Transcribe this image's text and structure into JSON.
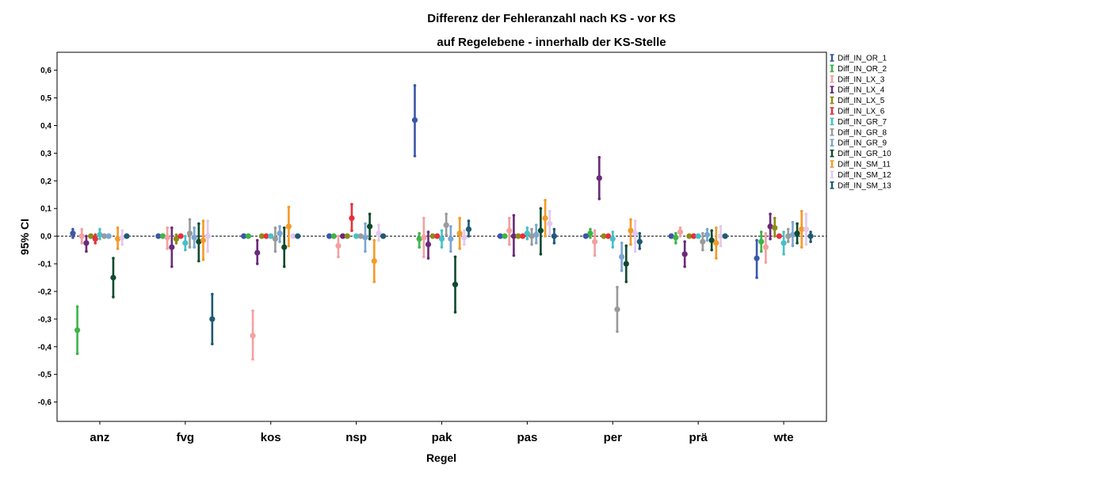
{
  "chart_data": {
    "type": "errorbar",
    "title": "Differenz der Fehleranzahl nach KS - vor KS",
    "subtitle": "auf Regelebene - innerhalb der KS-Stelle",
    "xlabel": "Regel",
    "ylabel": "95% CI",
    "ylim": [
      -0.67,
      0.665
    ],
    "yticks": [
      -0.6,
      -0.5,
      -0.4,
      -0.3,
      -0.2,
      -0.1,
      0.0,
      0.1,
      0.2,
      0.3,
      0.4,
      0.5,
      0.6
    ],
    "ytick_labels": [
      "-0,6",
      "-0,5",
      "-0,4",
      "-0,3",
      "-0,2",
      "-0,1",
      "0,0",
      "0,1",
      "0,2",
      "0,3",
      "0,4",
      "0,5",
      "0,6"
    ],
    "reference_line": 0.0,
    "legend_position": "right",
    "categories": [
      "anz",
      "fvg",
      "kos",
      "nsp",
      "pak",
      "pas",
      "per",
      "prä",
      "wte"
    ],
    "series": [
      {
        "name": "Diff_IN_OR_1",
        "color": "#3a57a8",
        "mean": [
          0.01,
          0.0,
          0.0,
          0.0,
          0.42,
          0.0,
          0.0,
          0.0,
          -0.08
        ],
        "lower": [
          -0.005,
          0.0,
          0.0,
          0.0,
          0.29,
          0.0,
          0.0,
          0.0,
          -0.15
        ],
        "upper": [
          0.025,
          0.0,
          0.0,
          0.0,
          0.545,
          0.0,
          0.0,
          0.0,
          -0.015
        ]
      },
      {
        "name": "Diff_IN_OR_2",
        "color": "#3cb54a",
        "mean": [
          -0.34,
          0.0,
          0.0,
          0.0,
          -0.01,
          0.0,
          0.01,
          -0.005,
          -0.02
        ],
        "lower": [
          -0.425,
          0.0,
          0.0,
          0.0,
          -0.04,
          0.0,
          -0.005,
          -0.025,
          -0.055
        ],
        "upper": [
          -0.255,
          0.0,
          0.0,
          0.0,
          0.01,
          0.0,
          0.025,
          0.01,
          0.015
        ]
      },
      {
        "name": "Diff_IN_LX_3",
        "color": "#f4a0a0",
        "mean": [
          0.0,
          -0.005,
          -0.36,
          -0.035,
          -0.005,
          0.02,
          -0.02,
          0.015,
          -0.04
        ],
        "lower": [
          -0.025,
          -0.045,
          -0.445,
          -0.075,
          -0.075,
          -0.03,
          -0.07,
          0.0,
          -0.095
        ],
        "upper": [
          0.025,
          0.03,
          -0.27,
          0.0,
          0.065,
          0.065,
          0.02,
          0.03,
          0.01
        ]
      },
      {
        "name": "Diff_IN_LX_4",
        "color": "#6b2a7a",
        "mean": [
          -0.025,
          -0.04,
          -0.06,
          0.0,
          -0.03,
          0.0,
          0.21,
          -0.065,
          0.035
        ],
        "lower": [
          -0.055,
          -0.11,
          -0.1,
          0.0,
          -0.08,
          -0.07,
          0.135,
          -0.11,
          -0.01
        ],
        "upper": [
          0.0,
          0.03,
          -0.015,
          0.0,
          0.015,
          0.075,
          0.285,
          -0.02,
          0.08
        ]
      },
      {
        "name": "Diff_IN_LX_5",
        "color": "#8c8c18",
        "mean": [
          0.0,
          -0.01,
          0.0,
          0.0,
          0.0,
          0.0,
          0.0,
          0.0,
          0.03
        ],
        "lower": [
          0.0,
          -0.025,
          0.0,
          0.0,
          0.0,
          0.0,
          0.0,
          0.0,
          0.0
        ],
        "upper": [
          0.0,
          0.005,
          0.0,
          0.0,
          0.0,
          0.0,
          0.0,
          0.0,
          0.065
        ]
      },
      {
        "name": "Diff_IN_LX_6",
        "color": "#e8303a",
        "mean": [
          -0.01,
          0.0,
          0.0,
          0.065,
          0.0,
          0.0,
          0.0,
          0.0,
          0.0
        ],
        "lower": [
          -0.025,
          0.0,
          0.0,
          0.02,
          0.0,
          0.0,
          0.0,
          0.0,
          0.0
        ],
        "upper": [
          0.005,
          0.0,
          0.0,
          0.115,
          0.0,
          0.0,
          0.0,
          0.0,
          0.0
        ]
      },
      {
        "name": "Diff_IN_GR_7",
        "color": "#48c0c8",
        "mean": [
          0.005,
          -0.025,
          0.0,
          0.0,
          -0.01,
          0.01,
          -0.01,
          0.0,
          -0.025
        ],
        "lower": [
          -0.01,
          -0.05,
          0.0,
          0.0,
          -0.04,
          -0.01,
          -0.04,
          0.0,
          -0.065
        ],
        "upper": [
          0.025,
          0.0,
          0.0,
          0.0,
          0.02,
          0.03,
          0.015,
          0.0,
          0.015
        ]
      },
      {
        "name": "Diff_IN_GR_8",
        "color": "#9a9a9a",
        "mean": [
          0.0,
          0.01,
          -0.01,
          0.0,
          0.04,
          0.0,
          -0.265,
          -0.02,
          0.0
        ],
        "lower": [
          0.0,
          -0.04,
          -0.055,
          0.0,
          0.005,
          -0.03,
          -0.345,
          -0.05,
          -0.02
        ],
        "upper": [
          0.0,
          0.06,
          0.03,
          0.0,
          0.08,
          0.025,
          -0.185,
          0.01,
          0.025
        ]
      },
      {
        "name": "Diff_IN_GR_9",
        "color": "#7aa6d0",
        "mean": [
          0.0,
          -0.005,
          0.01,
          -0.005,
          -0.01,
          0.005,
          -0.075,
          0.005,
          0.005
        ],
        "lower": [
          0.0,
          -0.04,
          -0.02,
          -0.055,
          -0.055,
          -0.025,
          -0.125,
          -0.015,
          -0.035
        ],
        "upper": [
          0.0,
          0.03,
          0.035,
          0.045,
          0.035,
          0.04,
          -0.025,
          0.025,
          0.05
        ]
      },
      {
        "name": "Diff_IN_GR_10",
        "color": "#0f4a2e",
        "mean": [
          -0.15,
          -0.02,
          -0.04,
          0.035,
          -0.175,
          0.02,
          -0.1,
          -0.015,
          0.01
        ],
        "lower": [
          -0.22,
          -0.09,
          -0.11,
          -0.01,
          -0.275,
          -0.065,
          -0.165,
          -0.05,
          -0.025
        ],
        "upper": [
          -0.08,
          0.045,
          0.03,
          0.08,
          -0.075,
          0.1,
          -0.035,
          0.02,
          0.045
        ]
      },
      {
        "name": "Diff_IN_SM_11",
        "color": "#f49a28",
        "mean": [
          -0.01,
          -0.015,
          0.035,
          -0.09,
          0.01,
          0.065,
          0.02,
          -0.025,
          0.025
        ],
        "lower": [
          -0.045,
          -0.085,
          -0.035,
          -0.165,
          -0.045,
          0.0,
          -0.03,
          -0.08,
          -0.04
        ],
        "upper": [
          0.03,
          0.055,
          0.105,
          -0.015,
          0.065,
          0.13,
          0.06,
          0.03,
          0.09
        ]
      },
      {
        "name": "Diff_IN_SM_12",
        "color": "#e3c8ee",
        "mean": [
          -0.005,
          0.0,
          0.0,
          0.01,
          -0.005,
          0.045,
          0.01,
          0.0,
          0.025
        ],
        "lower": [
          -0.03,
          -0.055,
          0.0,
          -0.015,
          -0.03,
          0.005,
          -0.055,
          -0.035,
          -0.03
        ],
        "upper": [
          0.02,
          0.055,
          0.0,
          0.04,
          0.02,
          0.09,
          0.055,
          0.035,
          0.08
        ]
      },
      {
        "name": "Diff_IN_SM_13",
        "color": "#1e5a74",
        "mean": [
          0.0,
          -0.3,
          0.0,
          0.0,
          0.025,
          0.0,
          -0.02,
          0.0,
          0.0
        ],
        "lower": [
          0.0,
          -0.39,
          0.0,
          0.0,
          0.0,
          -0.025,
          -0.045,
          0.0,
          -0.02
        ],
        "upper": [
          0.0,
          -0.21,
          0.0,
          0.0,
          0.055,
          0.025,
          0.01,
          0.0,
          0.015
        ]
      }
    ]
  }
}
